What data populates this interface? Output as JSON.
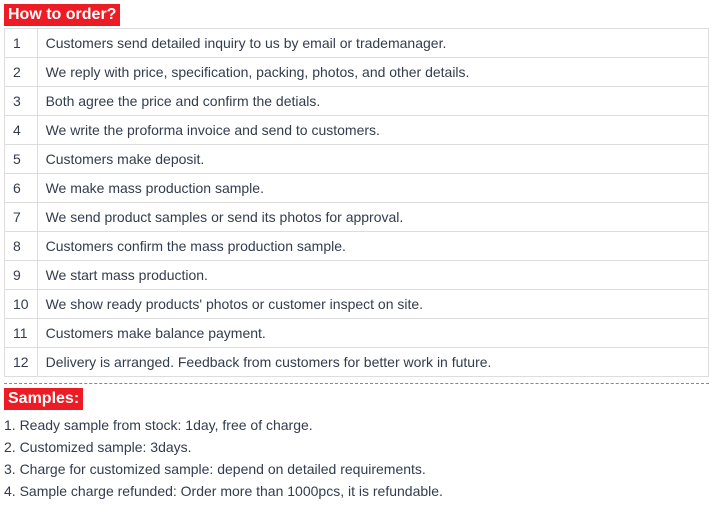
{
  "howToOrder": {
    "title": "How to order?",
    "steps": [
      {
        "num": "1",
        "text": "Customers send detailed inquiry to us by email or trademanager."
      },
      {
        "num": "2",
        "text": "We reply with price, specification, packing, photos, and other details."
      },
      {
        "num": "3",
        "text": "Both agree the price and confirm the detials."
      },
      {
        "num": "4",
        "text": "We write the proforma invoice and send to customers."
      },
      {
        "num": "5",
        "text": "Customers make deposit."
      },
      {
        "num": "6",
        "text": "We make mass production sample."
      },
      {
        "num": "7",
        "text": "We send product samples or send its photos for approval."
      },
      {
        "num": "8",
        "text": "Customers confirm the mass production sample."
      },
      {
        "num": "9",
        "text": "We start mass production."
      },
      {
        "num": "10",
        "text": "We show ready products' photos or customer inspect on site."
      },
      {
        "num": "11",
        "text": "Customers make balance payment."
      },
      {
        "num": "12",
        "text": "Delivery is arranged. Feedback from customers for better work in future."
      }
    ]
  },
  "samples": {
    "title": "Samples:",
    "items": [
      "1. Ready sample from stock: 1day, free of charge.",
      "2. Customized sample: 3days.",
      "3. Charge for customized sample: depend on detailed requirements.",
      "4.  Sample charge refunded: Order more than 1000pcs, it is refundable."
    ]
  },
  "colors": {
    "header_bg": "#ed1c24",
    "header_text": "#ffffff",
    "body_text": "#333c4e",
    "border": "#dddddd",
    "divider": "#888888"
  }
}
